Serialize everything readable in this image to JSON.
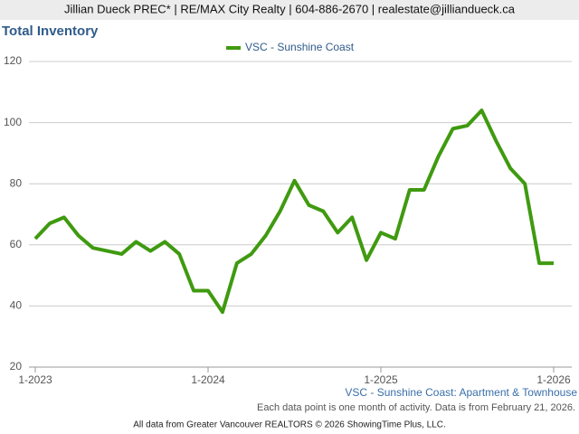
{
  "header": "Jillian Dueck PREC* | RE/MAX City Realty | 604-886-2670 | realestate@jilliandueck.ca",
  "chart_data": {
    "type": "line",
    "title": "Total Inventory",
    "categories": [
      "1-2023",
      null,
      null,
      null,
      null,
      null,
      null,
      null,
      null,
      null,
      null,
      null,
      "1-2024",
      null,
      null,
      null,
      null,
      null,
      null,
      null,
      null,
      null,
      null,
      null,
      "1-2025",
      null,
      null,
      null,
      null,
      null,
      null,
      null,
      null,
      null,
      null,
      null,
      "1-2026"
    ],
    "series": [
      {
        "name": "VSC - Sunshine Coast",
        "color": "#3f9a10",
        "values": [
          62,
          67,
          69,
          63,
          59,
          58,
          57,
          61,
          58,
          61,
          57,
          45,
          45,
          38,
          54,
          57,
          63,
          71,
          81,
          73,
          71,
          64,
          69,
          55,
          64,
          62,
          78,
          78,
          89,
          98,
          99,
          104,
          94,
          85,
          80,
          54,
          54
        ]
      }
    ],
    "ylim": [
      20,
      120
    ],
    "yticks": [
      20,
      40,
      60,
      80,
      100,
      120
    ],
    "grid": true,
    "legend": "top",
    "caption": "VSC - Sunshine Coast: Apartment & Townhouse",
    "note": "Each data point is one month of activity. Data is from February 21, 2026.",
    "source": "All data from Greater Vancouver REALTORS © 2026 ShowingTime Plus, LLC."
  }
}
